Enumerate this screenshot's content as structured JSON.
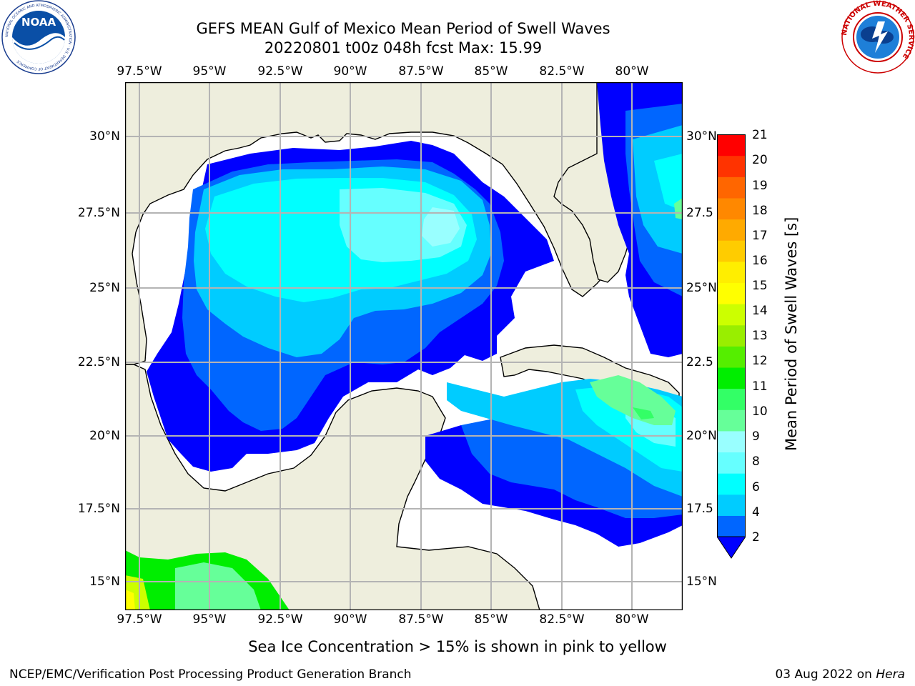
{
  "title": {
    "line1": "GEFS MEAN Gulf of Mexico Mean Period of Swell Waves",
    "line2": "20220801 t00z 048h fcst   Max: 15.99"
  },
  "map": {
    "lon_ticks": [
      "97.5°W",
      "95°W",
      "92.5°W",
      "90°W",
      "87.5°W",
      "85°W",
      "82.5°W",
      "80°W"
    ],
    "lat_ticks_left": [
      "30°N",
      "27.5°N",
      "25°N",
      "22.5°N",
      "20°N",
      "17.5°N",
      "15°N"
    ],
    "lat_ticks_right": [
      "30°N",
      "27.5",
      "25°N",
      "22.5",
      "20°N",
      "17.5",
      "15°N"
    ],
    "colors": {
      "land": "#eeeedd",
      "ocean_nodata": "#ffffff",
      "grid": "#b4b4b4",
      "coast": "#000000"
    }
  },
  "colorbar": {
    "label": "Mean Period of Swell Waves [s]",
    "ticks": [
      "2",
      "4",
      "6",
      "8",
      "9",
      "10",
      "11",
      "12",
      "13",
      "14",
      "15",
      "16",
      "17",
      "18",
      "19",
      "20",
      "21"
    ],
    "extend_color": "#0000ff",
    "bands": [
      "#0066ff",
      "#00ccff",
      "#00ffff",
      "#66ffff",
      "#99ffff",
      "#66ff99",
      "#33ff66",
      "#00ee00",
      "#55ee00",
      "#99ee00",
      "#ccff00",
      "#ffff00",
      "#ffee00",
      "#ffcc00",
      "#ffaa00",
      "#ff8800",
      "#ff6600",
      "#ff3300",
      "#ff0000"
    ]
  },
  "sea_ice_note": "Sea Ice Concentration > 15% is shown in pink to yellow",
  "footer": {
    "left": "NCEP/EMC/Verification Post Processing Product Generation Branch",
    "right_date": "03 Aug 2022 on ",
    "right_host": "Hera"
  },
  "logos": {
    "noaa": {
      "text": "NOAA",
      "ring_text": "NATIONAL OCEANIC AND ATMOSPHERIC ADMINISTRATION · U.S. DEPARTMENT OF COMMERCE"
    },
    "nws": {
      "ring_text": "NATIONAL WEATHER SERVICE"
    }
  }
}
